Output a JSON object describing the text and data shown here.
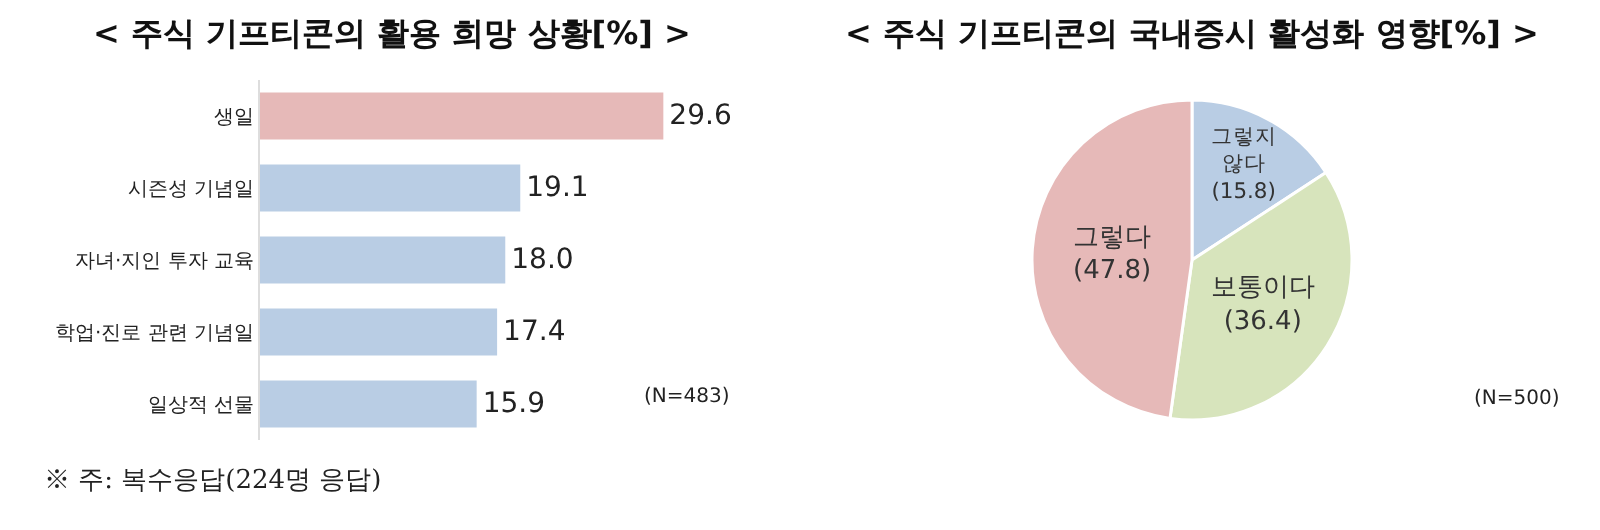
{
  "chart_data": [
    {
      "type": "bar",
      "title": "< 주식 기프티콘의 활용 희망 상황[%] >",
      "orientation": "horizontal",
      "categories": [
        "생일",
        "시즌성 기념일",
        "자녀·지인 투자 교육",
        "학업·진로 관련 기념일",
        "일상적 선물"
      ],
      "values": [
        29.6,
        19.1,
        18.0,
        17.4,
        15.9
      ],
      "colors": [
        "#e6b9b8",
        "#b9cde4",
        "#b9cde4",
        "#b9cde4",
        "#b9cde4"
      ],
      "value_labels": [
        "29.6",
        "19.1",
        "18.0",
        "17.4",
        "15.9"
      ],
      "annotations": [
        "(N=483)",
        "※ 주: 복수응답(224명 응답)"
      ]
    },
    {
      "type": "pie",
      "title": "< 주식 기프티콘의 국내증시 활성화 영향[%] >",
      "categories": [
        "그렇지 않다",
        "보통이다",
        "그렇다"
      ],
      "values": [
        15.8,
        36.4,
        47.8
      ],
      "colors": [
        "#b9cde4",
        "#d7e4bc",
        "#e6b9b8"
      ],
      "value_labels": [
        "(15.8)",
        "(36.4)",
        "(47.8)"
      ],
      "annotations": [
        "(N=500)"
      ]
    }
  ]
}
